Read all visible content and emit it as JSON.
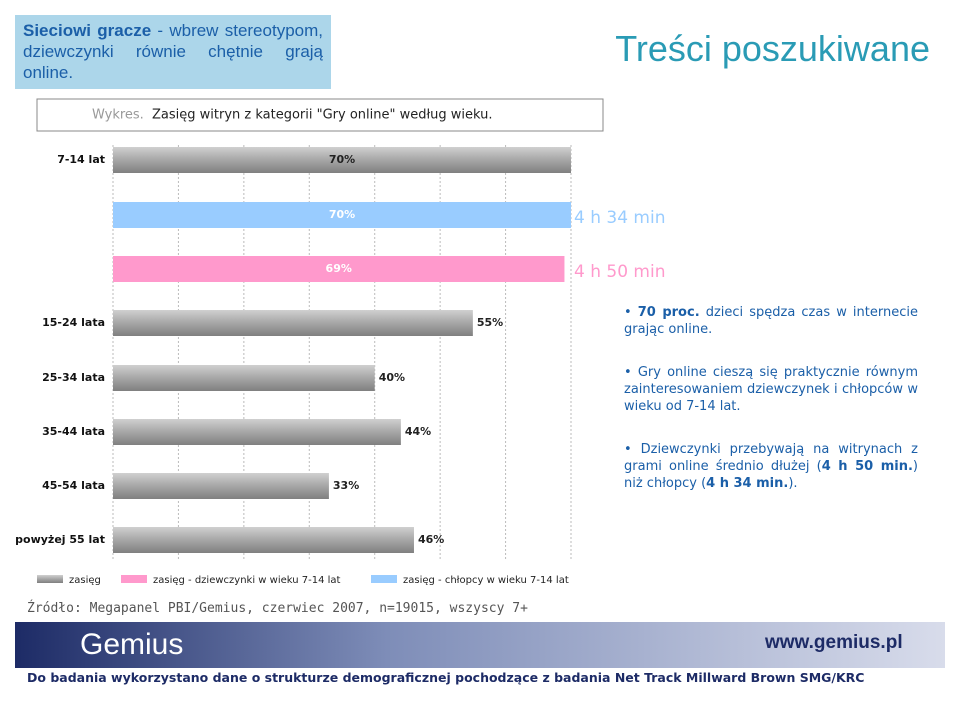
{
  "header": {
    "lead": "Sieciowi gracze",
    "text": " - wbrew stereotypom, dziewczynki równie chętnie grają online."
  },
  "slide_title": "Treści poszukiwane",
  "chart_data": {
    "type": "bar",
    "orientation": "horizontal",
    "title_prefix": "Wykres.",
    "title": "Zasięg witryn z kategorii \"Gry online\" według wieku.",
    "categories": [
      "7-14 lat",
      "15-24 lata",
      "25-34 lata",
      "35-44 lata",
      "45-54 lata",
      "powyżej 55 lat"
    ],
    "series": [
      {
        "name": "zasięg",
        "color": "#a6a6a6",
        "values": [
          70,
          55,
          40,
          44,
          33,
          46
        ],
        "value_labels": [
          "70%",
          "55%",
          "40%",
          "44%",
          "33%",
          "46%"
        ]
      },
      {
        "name": "zasięg  - chłopcy w wieku 7-14 lat",
        "color": "#99ccff",
        "values": [
          70,
          null,
          null,
          null,
          null,
          null
        ],
        "value_labels": [
          "70%",
          null,
          null,
          null,
          null,
          null
        ],
        "annotation": "4 h 34 min"
      },
      {
        "name": "zasięg  - dziewczynki w wieku 7-14 lat",
        "color": "#ff99cc",
        "values": [
          69,
          null,
          null,
          null,
          null,
          null
        ],
        "value_labels": [
          "69%",
          null,
          null,
          null,
          null,
          null
        ],
        "annotation": "4 h 50 min"
      }
    ],
    "xlim": [
      0,
      70
    ],
    "xticks": [
      0,
      10,
      20,
      30,
      40,
      50,
      60,
      70
    ],
    "grid": true
  },
  "bullets": [
    [
      {
        "text": "70 proc.",
        "bold": true
      },
      {
        "text": " dzieci spędza czas w internecie grając online."
      }
    ],
    [
      {
        "text": "Gry online cieszą się praktycznie równym zainteresowaniem dziewczynek i chłopców w wieku od 7-14 lat."
      }
    ],
    [
      {
        "text": "Dziewczynki przebywają na witrynach z grami online średnio dłużej ("
      },
      {
        "text": "4 h 50 min.",
        "bold": true
      },
      {
        "text": ") niż chłopcy ("
      },
      {
        "text": "4 h 34 min.",
        "bold": true
      },
      {
        "text": ")."
      }
    ]
  ],
  "source": "Źródło: Megapanel PBI/Gemius, czerwiec 2007, n=19015, wszyscy 7+",
  "footer": {
    "logo": "Gemius",
    "url": "www.gemius.pl",
    "note": "Do badania wykorzystano dane o strukturze demograficznej pochodzące z badania Net Track Millward Brown SMG/KRC"
  }
}
